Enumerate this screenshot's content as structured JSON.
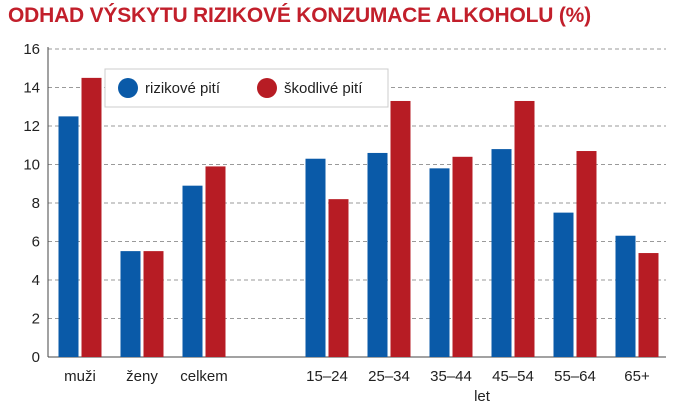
{
  "chart_data": {
    "type": "bar",
    "title": "ODHAD VÝSKYTU RIZIKOVÉ KONZUMACE ALKOHOLU (%)",
    "xlabel": "let",
    "ylabel": "",
    "ylim": [
      0,
      16
    ],
    "yticks": [
      "0",
      "2",
      "4",
      "6",
      "8",
      "10",
      "12",
      "14",
      "16"
    ],
    "grid": true,
    "legend_position": "top-left",
    "categories": [
      "muži",
      "ženy",
      "celkem",
      "15–24",
      "25–34",
      "35–44",
      "45–54",
      "55–64",
      "65+"
    ],
    "series": [
      {
        "name": "rizikové pití",
        "color": "#0a5aa8",
        "values": [
          12.5,
          5.5,
          8.9,
          10.3,
          10.6,
          9.8,
          10.8,
          7.5,
          6.3
        ]
      },
      {
        "name": "škodlivé pití",
        "color": "#b71c24",
        "values": [
          14.5,
          5.5,
          9.9,
          8.2,
          13.3,
          10.4,
          13.3,
          10.7,
          5.4
        ]
      }
    ]
  }
}
